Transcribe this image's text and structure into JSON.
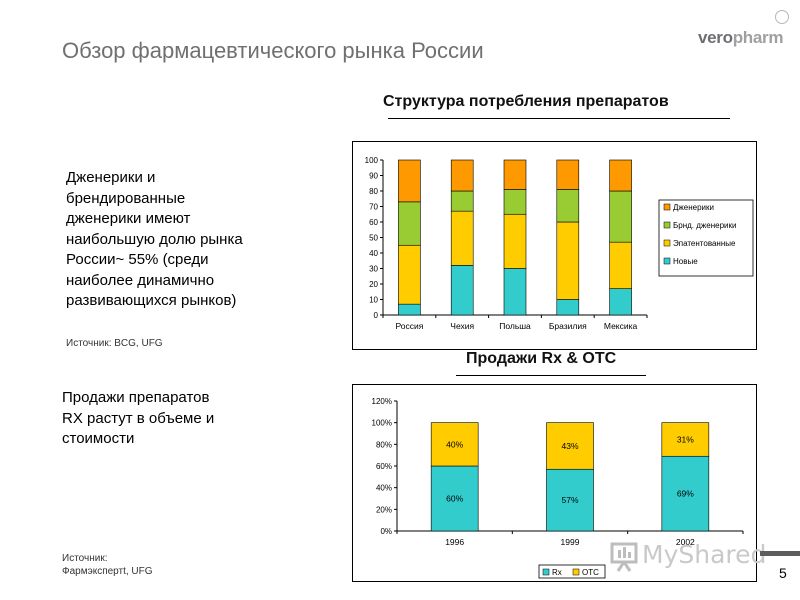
{
  "header": {
    "title": "Обзор фармацевтического рынка России",
    "logo_part1": "vero",
    "logo_part2": "pharm"
  },
  "section1": {
    "heading": "Структура потребления препаратов",
    "text_lines": [
      "Дженерики и",
      "брендированные",
      "дженерики имеют",
      "наибольшую долю рынка",
      "России~ 55% (среди",
      "наиболее динамично",
      "развивающихся рынков)"
    ],
    "source": "Источник: BCG, UFG"
  },
  "section2": {
    "heading": "Продажи Rx & OTC",
    "text_lines": [
      "Продажи препаратов",
      "RX растут в объеме и",
      "стоимости"
    ],
    "source_lines": [
      "Источник:",
      "Фармэкспертt, UFG"
    ]
  },
  "page_number": "5",
  "watermark_text": "MyShared",
  "chart_data": [
    {
      "type": "bar",
      "stacked": true,
      "categories": [
        "Россия",
        "Чехия",
        "Польша",
        "Бразилия",
        "Мексика"
      ],
      "series": [
        {
          "name": "Новые",
          "color": "#33cccc",
          "values": [
            7,
            32,
            30,
            10,
            17
          ]
        },
        {
          "name": "Эпатентованные",
          "color": "#ffcc00",
          "values": [
            38,
            35,
            35,
            50,
            30
          ]
        },
        {
          "name": "Брнд. дженерики",
          "color": "#99cc33",
          "values": [
            28,
            13,
            16,
            21,
            33
          ]
        },
        {
          "name": "Дженерики",
          "color": "#ff9900",
          "values": [
            27,
            20,
            19,
            19,
            20
          ]
        }
      ],
      "legend_order": [
        "Дженерики",
        "Брнд. дженерики",
        "Эпатентованные",
        "Новые"
      ],
      "ylim": [
        0,
        100
      ],
      "yticks": [
        "0",
        "10",
        "20",
        "30",
        "40",
        "50",
        "60",
        "70",
        "80",
        "90",
        "100"
      ],
      "legend_position": "right",
      "grid": false
    },
    {
      "type": "bar",
      "stacked": true,
      "categories": [
        "1996",
        "1999",
        "2002"
      ],
      "series": [
        {
          "name": "Rx",
          "color": "#33cccc",
          "values": [
            60,
            57,
            69
          ],
          "labels": [
            "60%",
            "57%",
            "69%"
          ]
        },
        {
          "name": "OTC",
          "color": "#ffcc00",
          "values": [
            40,
            43,
            31
          ],
          "labels": [
            "40%",
            "43%",
            "31%"
          ]
        }
      ],
      "ylim": [
        0,
        120
      ],
      "yticks": [
        "0%",
        "20%",
        "40%",
        "60%",
        "80%",
        "100%",
        "120%"
      ],
      "legend_position": "bottom",
      "grid": false
    }
  ]
}
